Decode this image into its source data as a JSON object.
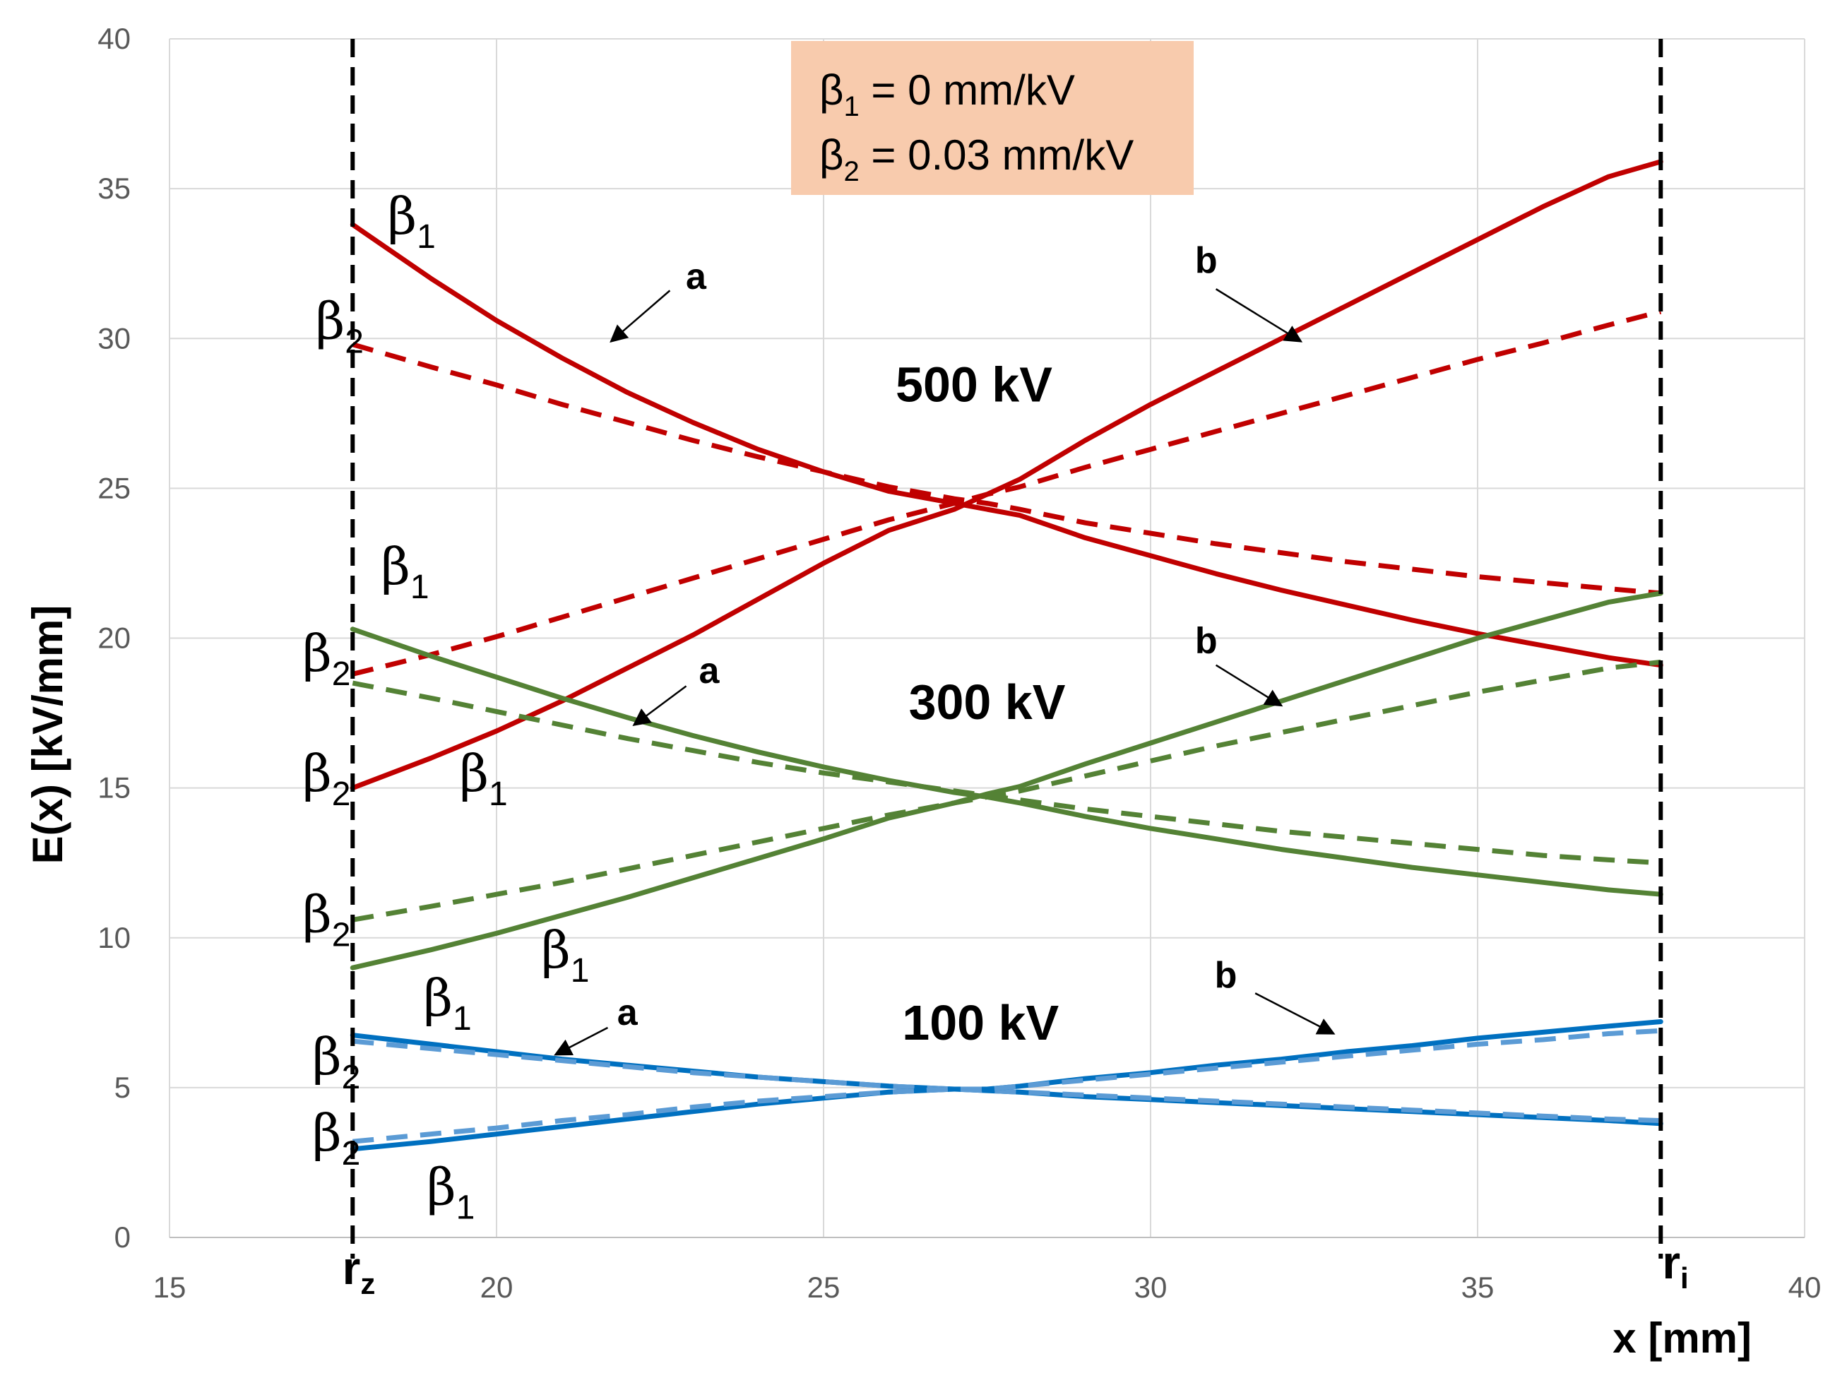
{
  "chart_data": {
    "type": "line",
    "xlabel": "x  [mm]",
    "ylabel": "E(x) [kV/mm]",
    "xlim": [
      15,
      40
    ],
    "ylim": [
      0,
      40
    ],
    "x_ticks": [
      15,
      20,
      25,
      30,
      35,
      40
    ],
    "y_ticks": [
      0,
      5,
      10,
      15,
      20,
      25,
      30,
      35,
      40
    ],
    "grid": true,
    "x": [
      17.8,
      19,
      20,
      21,
      22,
      23,
      24,
      25,
      26,
      27,
      27.5,
      28,
      29,
      30,
      31,
      32,
      33,
      34,
      35,
      36,
      37,
      37.8
    ],
    "legend_box": {
      "beta1": {
        "sym": "β",
        "sub": "1",
        "rest": " = 0 mm/kV"
      },
      "beta2": {
        "sym": "β",
        "sub": "2",
        "rest": " = 0.03 mm/kV"
      },
      "bg_color": "#F8CBAD"
    },
    "markers": {
      "rz": {
        "main": "r",
        "sub": "z",
        "x": 17.8
      },
      "ri": {
        "main": "r",
        "sub": "i",
        "x": 37.8
      }
    },
    "series": [
      {
        "name": "500 kV a β1",
        "voltage": "500 kV",
        "curve": "a",
        "beta": "β1",
        "style": "solid",
        "color": "#C00000",
        "values": [
          33.8,
          32.0,
          30.6,
          29.35,
          28.2,
          27.2,
          26.3,
          25.55,
          24.9,
          24.5,
          24.3,
          24.1,
          23.35,
          22.75,
          22.15,
          21.6,
          21.1,
          20.6,
          20.15,
          19.75,
          19.35,
          19.1
        ]
      },
      {
        "name": "500 kV a β2",
        "voltage": "500 kV",
        "curve": "a",
        "beta": "β2",
        "style": "dashed",
        "color": "#C00000",
        "values": [
          29.8,
          29.05,
          28.45,
          27.8,
          27.2,
          26.6,
          26.05,
          25.55,
          25.05,
          24.65,
          24.5,
          24.3,
          23.85,
          23.5,
          23.15,
          22.85,
          22.55,
          22.3,
          22.05,
          21.85,
          21.65,
          21.5
        ]
      },
      {
        "name": "500 kV b β1",
        "voltage": "500 kV",
        "curve": "b",
        "beta": "β1",
        "style": "solid",
        "color": "#C00000",
        "values": [
          15.0,
          16.0,
          16.9,
          17.9,
          19.0,
          20.1,
          21.3,
          22.5,
          23.6,
          24.3,
          24.8,
          25.3,
          26.6,
          27.8,
          28.9,
          30.0,
          31.1,
          32.2,
          33.3,
          34.4,
          35.4,
          35.9
        ]
      },
      {
        "name": "500 kV b β2",
        "voltage": "500 kV",
        "curve": "b",
        "beta": "β2",
        "style": "dashed",
        "color": "#C00000",
        "values": [
          18.8,
          19.45,
          20.05,
          20.7,
          21.35,
          22.0,
          22.65,
          23.3,
          23.95,
          24.5,
          24.8,
          25.05,
          25.7,
          26.3,
          26.9,
          27.5,
          28.1,
          28.7,
          29.3,
          29.85,
          30.45,
          30.9
        ]
      },
      {
        "name": "300 kV a β1",
        "voltage": "300 kV",
        "curve": "a",
        "beta": "β1",
        "style": "solid",
        "color": "#548235",
        "values": [
          20.3,
          19.4,
          18.7,
          18.0,
          17.35,
          16.75,
          16.2,
          15.7,
          15.25,
          14.85,
          14.7,
          14.5,
          14.05,
          13.65,
          13.3,
          12.95,
          12.65,
          12.35,
          12.1,
          11.85,
          11.6,
          11.45
        ]
      },
      {
        "name": "300 kV a β2",
        "voltage": "300 kV",
        "curve": "a",
        "beta": "β2",
        "style": "dashed",
        "color": "#548235",
        "values": [
          18.5,
          18.0,
          17.55,
          17.1,
          16.65,
          16.25,
          15.85,
          15.5,
          15.2,
          14.9,
          14.75,
          14.6,
          14.3,
          14.05,
          13.8,
          13.55,
          13.35,
          13.15,
          12.95,
          12.75,
          12.6,
          12.5
        ]
      },
      {
        "name": "300 kV b β1",
        "voltage": "300 kV",
        "curve": "b",
        "beta": "β1",
        "style": "solid",
        "color": "#548235",
        "values": [
          9.0,
          9.6,
          10.15,
          10.75,
          11.35,
          12.0,
          12.65,
          13.3,
          14.0,
          14.5,
          14.8,
          15.05,
          15.8,
          16.5,
          17.2,
          17.9,
          18.6,
          19.3,
          20.0,
          20.6,
          21.2,
          21.5
        ]
      },
      {
        "name": "300 kV b β2",
        "voltage": "300 kV",
        "curve": "b",
        "beta": "β2",
        "style": "dashed",
        "color": "#548235",
        "values": [
          10.6,
          11.05,
          11.45,
          11.85,
          12.3,
          12.75,
          13.2,
          13.65,
          14.1,
          14.5,
          14.7,
          14.9,
          15.4,
          15.9,
          16.4,
          16.85,
          17.3,
          17.75,
          18.2,
          18.6,
          19.0,
          19.2
        ]
      },
      {
        "name": "100 kV a β1",
        "voltage": "100 kV",
        "curve": "a",
        "beta": "β1",
        "style": "solid",
        "color": "#0070C0",
        "values": [
          6.75,
          6.45,
          6.2,
          5.95,
          5.75,
          5.55,
          5.35,
          5.2,
          5.05,
          4.95,
          4.9,
          4.85,
          4.7,
          4.6,
          4.5,
          4.4,
          4.3,
          4.2,
          4.1,
          4.0,
          3.9,
          3.8
        ]
      },
      {
        "name": "100 kV a β2",
        "voltage": "100 kV",
        "curve": "a",
        "beta": "β2",
        "style": "dashed",
        "color": "#5B9BD5",
        "values": [
          6.55,
          6.3,
          6.1,
          5.9,
          5.7,
          5.5,
          5.35,
          5.2,
          5.05,
          4.95,
          4.9,
          4.85,
          4.75,
          4.65,
          4.55,
          4.45,
          4.35,
          4.25,
          4.15,
          4.05,
          3.95,
          3.9
        ]
      },
      {
        "name": "100 kV b β1",
        "voltage": "100 kV",
        "curve": "b",
        "beta": "β1",
        "style": "solid",
        "color": "#0070C0",
        "values": [
          2.95,
          3.2,
          3.45,
          3.7,
          3.95,
          4.2,
          4.45,
          4.65,
          4.85,
          4.95,
          4.95,
          5.05,
          5.3,
          5.5,
          5.75,
          5.95,
          6.2,
          6.4,
          6.65,
          6.85,
          7.05,
          7.2
        ]
      },
      {
        "name": "100 kV b β2",
        "voltage": "100 kV",
        "curve": "b",
        "beta": "β2",
        "style": "dashed",
        "color": "#5B9BD5",
        "values": [
          3.2,
          3.45,
          3.65,
          3.9,
          4.1,
          4.35,
          4.55,
          4.7,
          4.85,
          4.95,
          4.95,
          5.05,
          5.25,
          5.45,
          5.65,
          5.85,
          6.05,
          6.25,
          6.45,
          6.6,
          6.8,
          6.9
        ]
      }
    ],
    "voltage_labels": [
      {
        "text": "500 kV",
        "x": 27.3,
        "y": 27.9
      },
      {
        "text": "300 kV",
        "x": 27.5,
        "y": 17.3
      },
      {
        "text": "100 kV",
        "x": 27.4,
        "y": 6.6
      }
    ],
    "beta_labels": [
      {
        "sym": "β",
        "sub": "1",
        "x": 18.7,
        "y": 33.5
      },
      {
        "sym": "β",
        "sub": "2",
        "x": 17.6,
        "y": 30.0
      },
      {
        "sym": "β",
        "sub": "1",
        "x": 18.6,
        "y": 21.8
      },
      {
        "sym": "β",
        "sub": "2",
        "x": 17.4,
        "y": 18.9
      },
      {
        "sym": "β",
        "sub": "2",
        "x": 17.4,
        "y": 14.9
      },
      {
        "sym": "β",
        "sub": "1",
        "x": 19.8,
        "y": 14.9
      },
      {
        "sym": "β",
        "sub": "2",
        "x": 17.4,
        "y": 10.2
      },
      {
        "sym": "β",
        "sub": "1",
        "x": 21.05,
        "y": 9.0
      },
      {
        "sym": "β",
        "sub": "1",
        "x": 19.25,
        "y": 7.4
      },
      {
        "sym": "β",
        "sub": "2",
        "x": 17.55,
        "y": 5.45
      },
      {
        "sym": "β",
        "sub": "2",
        "x": 17.55,
        "y": 2.9
      },
      {
        "sym": "β",
        "sub": "1",
        "x": 19.3,
        "y": 1.1
      }
    ],
    "annotations": [
      {
        "text": "a",
        "text_x": 23.05,
        "text_y": 31.65,
        "tail_x": 22.65,
        "tail_y": 31.6,
        "head_x": 21.75,
        "head_y": 29.9
      },
      {
        "text": "b",
        "text_x": 30.85,
        "text_y": 32.2,
        "tail_x": 31.0,
        "tail_y": 31.65,
        "head_x": 32.3,
        "head_y": 29.9
      },
      {
        "text": "a",
        "text_x": 23.25,
        "text_y": 18.5,
        "tail_x": 22.9,
        "tail_y": 18.4,
        "head_x": 22.1,
        "head_y": 17.1
      },
      {
        "text": "b",
        "text_x": 30.85,
        "text_y": 19.5,
        "tail_x": 31.0,
        "tail_y": 19.1,
        "head_x": 32.0,
        "head_y": 17.75
      },
      {
        "text": "a",
        "text_x": 22.0,
        "text_y": 7.1,
        "tail_x": 21.7,
        "tail_y": 7.0,
        "head_x": 20.9,
        "head_y": 6.1
      },
      {
        "text": "b",
        "text_x": 31.15,
        "text_y": 8.35,
        "tail_x": 31.6,
        "tail_y": 8.15,
        "head_x": 32.8,
        "head_y": 6.8
      }
    ]
  }
}
